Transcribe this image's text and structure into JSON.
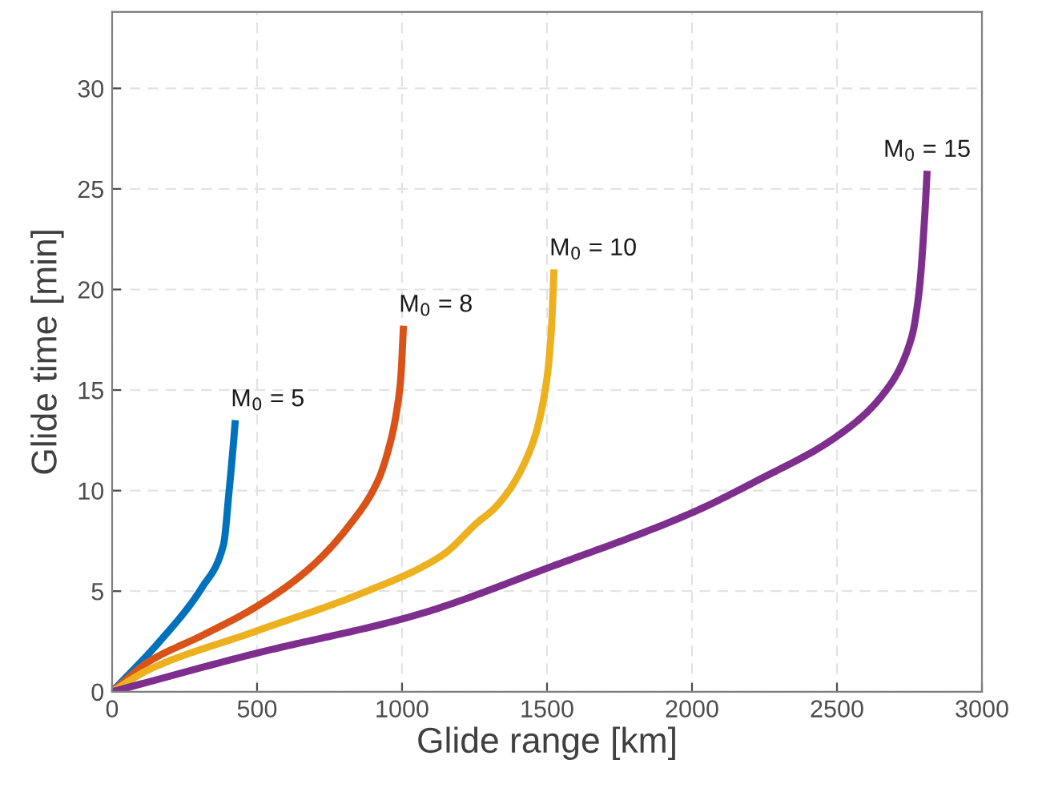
{
  "chart_data": {
    "type": "line",
    "xlabel": "Glide range [km]",
    "ylabel": "Glide time [min]",
    "xlim": [
      0,
      3000
    ],
    "xticks": [
      0,
      500,
      1000,
      1500,
      2000,
      2500,
      3000
    ],
    "ylim": [
      0,
      33.8
    ],
    "yticks": [
      0,
      5,
      10,
      15,
      20,
      25,
      30
    ],
    "grid": true,
    "marker": "none",
    "line_style": "solid",
    "series": [
      {
        "color": "#0072bd",
        "x": [
          0,
          164,
          311,
          384,
          403,
          417,
          425
        ],
        "values": [
          0,
          2.5,
          5.2,
          7.3,
          9.9,
          12.1,
          13.5
        ]
      },
      {
        "color": "#d95319",
        "x": [
          0,
          127,
          311,
          494,
          678,
          825,
          917,
          963,
          982,
          995,
          1005
        ],
        "values": [
          0,
          1.5,
          2.8,
          4.2,
          6.1,
          8.4,
          10.5,
          12.6,
          14.0,
          15.5,
          18.2
        ]
      },
      {
        "color": "#edb120",
        "x": [
          0,
          127,
          494,
          862,
          1140,
          1259,
          1324,
          1444,
          1497,
          1515,
          1524
        ],
        "values": [
          0,
          1.1,
          3.0,
          4.9,
          6.8,
          8.4,
          9.2,
          12.1,
          15.3,
          18.0,
          21.0
        ]
      },
      {
        "color": "#7e2f8e",
        "x": [
          0,
          494,
          1046,
          1511,
          2000,
          2225,
          2500,
          2665,
          2757,
          2784,
          2802,
          2811
        ],
        "values": [
          0,
          1.9,
          3.8,
          6.2,
          8.9,
          10.5,
          12.7,
          14.9,
          17.6,
          20.0,
          23.5,
          25.9
        ]
      }
    ],
    "annotations": [
      {
        "text": "M$_{0}$ = 5",
        "x": 425,
        "y": 13.5
      },
      {
        "text": "M$_{0}$ = 8",
        "x": 1005,
        "y": 18.2
      },
      {
        "text": "M$_{0}$ = 10",
        "x": 1524,
        "y": 21.0
      },
      {
        "text": "M$_{0}$ = 15",
        "x": 2811,
        "y": 25.9
      }
    ]
  }
}
